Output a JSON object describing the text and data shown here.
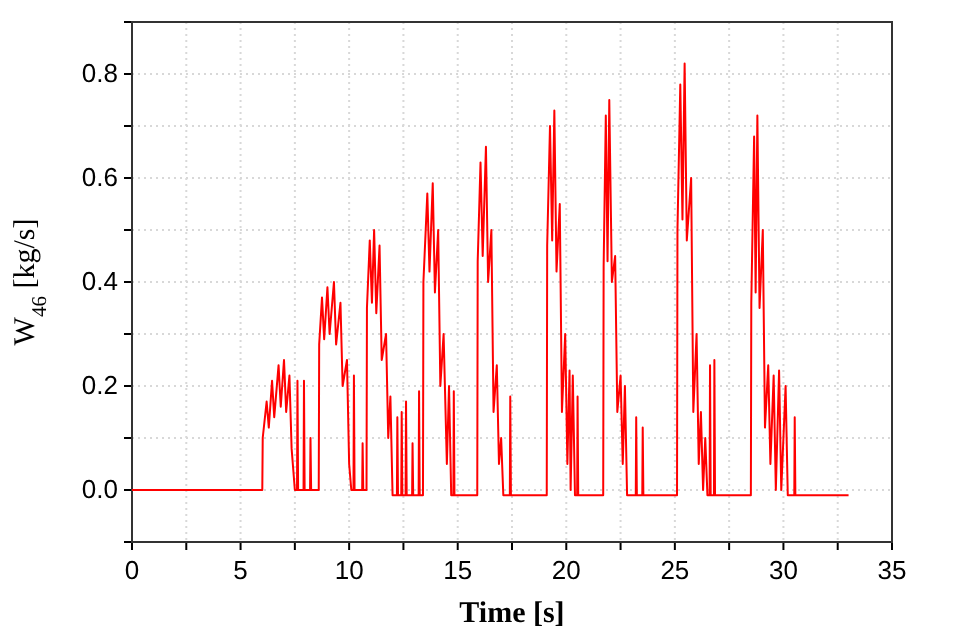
{
  "chart_data": {
    "type": "line",
    "xlabel": "Time [s]",
    "ylabel": "W$_{46}$ [kg/s]",
    "xlim": [
      0,
      35
    ],
    "ylim": [
      -0.1,
      0.9
    ],
    "xticks": [
      0,
      {
        "value": 2.5,
        "label": null
      },
      5,
      {
        "value": 7.5,
        "label": null
      },
      10,
      {
        "value": 12.5,
        "label": null
      },
      15,
      {
        "value": 17.5,
        "label": null
      },
      20,
      {
        "value": 22.5,
        "label": null
      },
      25,
      {
        "value": 27.5,
        "label": null
      },
      30,
      {
        "value": 32.5,
        "label": null
      },
      35
    ],
    "yticks": [
      {
        "value": -0.1,
        "label": null
      },
      {
        "value": 0,
        "label": "0.0"
      },
      {
        "value": 0.1,
        "label": null
      },
      {
        "value": 0.2,
        "label": "0.2"
      },
      {
        "value": 0.3,
        "label": null
      },
      {
        "value": 0.4,
        "label": "0.4"
      },
      {
        "value": 0.5,
        "label": null
      },
      {
        "value": 0.6,
        "label": "0.6"
      },
      {
        "value": 0.7,
        "label": null
      },
      {
        "value": 0.8,
        "label": "0.8"
      },
      {
        "value": 0.9,
        "label": null
      }
    ],
    "grid": true,
    "line_style": "solid",
    "marker": "none",
    "series": [
      {
        "color": "#ff0000",
        "x": [
          0,
          6.0,
          6.02,
          6.2,
          6.3,
          6.45,
          6.55,
          6.75,
          6.85,
          7.0,
          7.1,
          7.25,
          7.35,
          7.5,
          7.6,
          7.62,
          7.65,
          7.9,
          7.92,
          7.95,
          8.2,
          8.22,
          8.25,
          8.6,
          8.62,
          8.75,
          8.85,
          9.0,
          9.1,
          9.3,
          9.4,
          9.6,
          9.7,
          9.9,
          10.0,
          10.1,
          10.2,
          10.22,
          10.25,
          10.6,
          10.62,
          10.65,
          10.8,
          10.82,
          10.95,
          11.05,
          11.15,
          11.25,
          11.4,
          11.5,
          11.7,
          11.8,
          11.9,
          12.0,
          12.2,
          12.22,
          12.25,
          12.4,
          12.42,
          12.45,
          12.6,
          12.62,
          12.65,
          12.9,
          12.92,
          12.95,
          13.2,
          13.22,
          13.25,
          13.4,
          13.42,
          13.6,
          13.7,
          13.85,
          13.95,
          14.1,
          14.2,
          14.35,
          14.5,
          14.6,
          14.7,
          14.8,
          14.82,
          14.85,
          15.9,
          15.92,
          16.05,
          16.15,
          16.3,
          16.4,
          16.55,
          16.65,
          16.8,
          16.9,
          17.0,
          17.1,
          17.4,
          17.42,
          17.45,
          19.1,
          19.12,
          19.25,
          19.35,
          19.45,
          19.55,
          19.7,
          19.8,
          19.95,
          20.05,
          20.15,
          20.2,
          20.3,
          20.4,
          20.5,
          20.52,
          20.55,
          21.7,
          21.72,
          21.82,
          21.9,
          21.98,
          22.1,
          22.25,
          22.35,
          22.5,
          22.6,
          22.7,
          22.8,
          23.2,
          23.22,
          23.25,
          23.5,
          23.52,
          23.55,
          25.1,
          25.12,
          25.25,
          25.35,
          25.45,
          25.55,
          25.75,
          25.85,
          26.0,
          26.1,
          26.2,
          26.3,
          26.4,
          26.5,
          26.6,
          26.62,
          26.65,
          26.8,
          26.82,
          26.85,
          28.5,
          28.52,
          28.65,
          28.72,
          28.8,
          28.9,
          29.05,
          29.15,
          29.3,
          29.4,
          29.55,
          29.65,
          29.8,
          29.9,
          30.1,
          30.2,
          30.5,
          30.52,
          30.55,
          33.0
        ],
        "values": [
          0,
          0,
          0.1,
          0.17,
          0.12,
          0.21,
          0.14,
          0.24,
          0.16,
          0.25,
          0.15,
          0.22,
          0.08,
          0,
          0,
          0.21,
          0,
          0,
          0.21,
          0,
          0,
          0.1,
          0,
          0,
          0.28,
          0.37,
          0.29,
          0.39,
          0.3,
          0.4,
          0.28,
          0.36,
          0.2,
          0.25,
          0.05,
          0,
          0,
          0.22,
          0,
          0,
          0.09,
          0,
          0,
          0.35,
          0.48,
          0.36,
          0.5,
          0.34,
          0.47,
          0.25,
          0.3,
          0.1,
          0.18,
          -0.01,
          -0.01,
          0.14,
          -0.01,
          -0.01,
          0.15,
          -0.01,
          -0.01,
          0.17,
          -0.01,
          -0.01,
          0.09,
          -0.01,
          -0.01,
          0.19,
          -0.01,
          -0.01,
          0.4,
          0.57,
          0.42,
          0.59,
          0.38,
          0.5,
          0.2,
          0.3,
          0.05,
          0.2,
          -0.01,
          -0.01,
          0.19,
          -0.01,
          -0.01,
          0.44,
          0.63,
          0.45,
          0.66,
          0.4,
          0.5,
          0.15,
          0.24,
          0.05,
          0.1,
          -0.01,
          -0.01,
          0.18,
          -0.01,
          -0.01,
          0.47,
          0.7,
          0.48,
          0.73,
          0.42,
          0.55,
          0.15,
          0.3,
          0.05,
          0.23,
          0,
          0.22,
          -0.01,
          -0.01,
          0.18,
          -0.01,
          -0.01,
          0.43,
          0.72,
          0.44,
          0.75,
          0.4,
          0.45,
          0.15,
          0.22,
          0.05,
          0.2,
          -0.01,
          -0.01,
          0.14,
          -0.01,
          -0.01,
          0.12,
          -0.01,
          -0.01,
          0.5,
          0.78,
          0.52,
          0.82,
          0.48,
          0.6,
          0.15,
          0.3,
          0.05,
          0.15,
          0,
          0.1,
          -0.01,
          -0.01,
          0.24,
          -0.01,
          -0.01,
          0.25,
          -0.01,
          -0.01,
          0.36,
          0.68,
          0.38,
          0.72,
          0.35,
          0.5,
          0.12,
          0.24,
          0.05,
          0.22,
          0,
          0.23,
          0,
          0.2,
          -0.01,
          -0.01,
          0.14,
          -0.01,
          -0.01
        ]
      }
    ]
  }
}
